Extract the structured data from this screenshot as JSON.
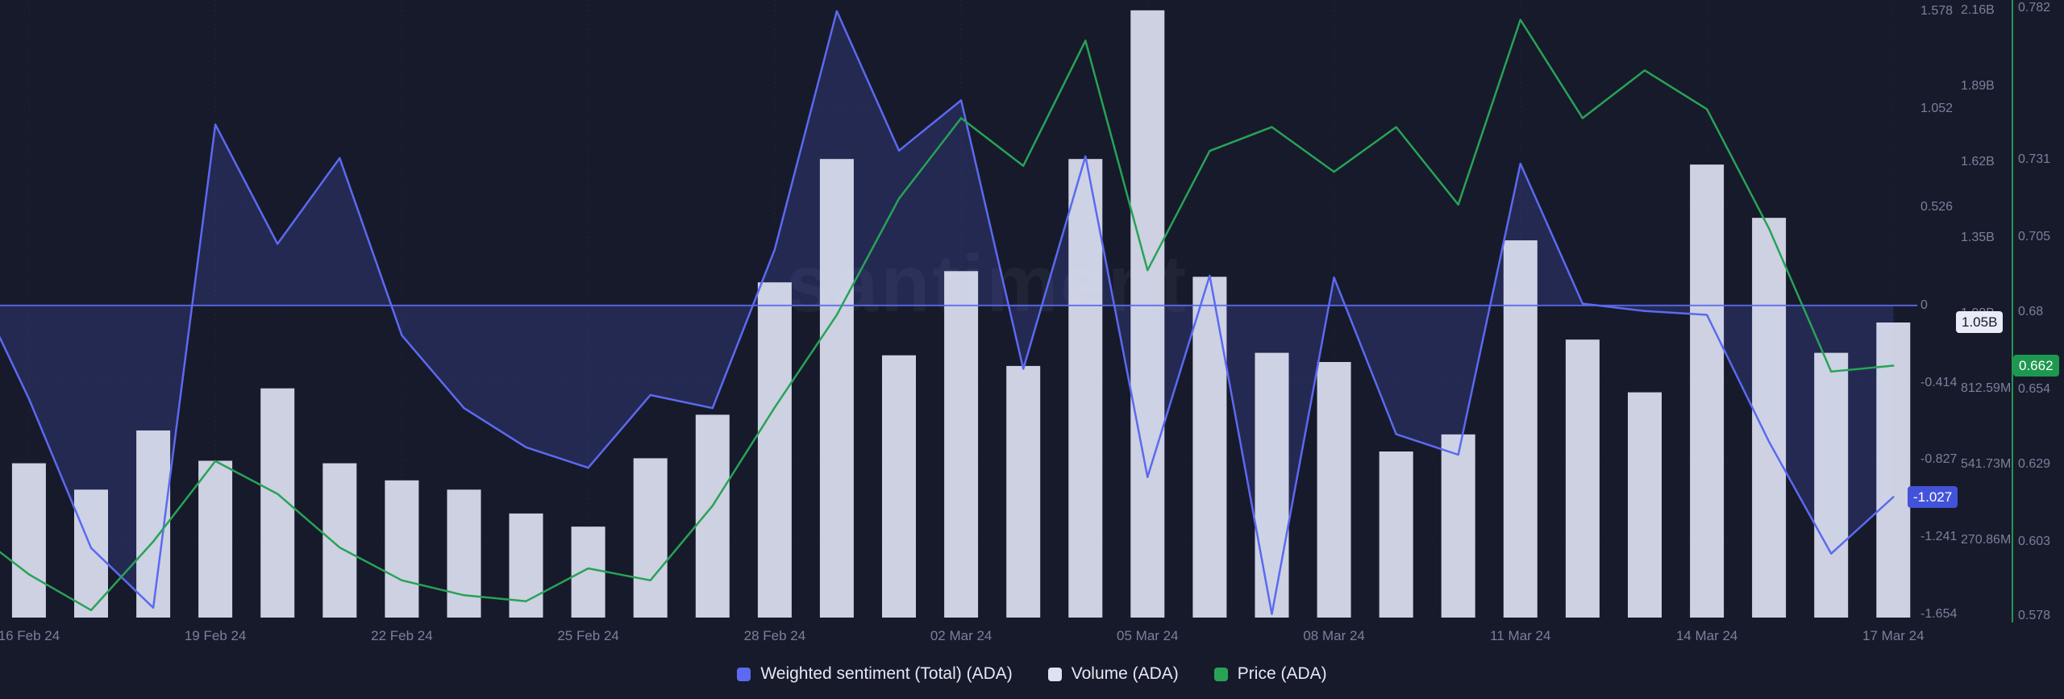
{
  "watermark": "santiment.",
  "colors": {
    "background": "#171a2b",
    "sentiment_line": "#5b6af0",
    "sentiment_fill": "rgba(91,106,240,0.20)",
    "volume_bar": "#dde1f2",
    "price_green": "#27a356",
    "badge_sentiment_bg": "#4353d9",
    "badge_volume_bg": "#e9ebf6",
    "badge_price_bg": "#1e9850",
    "axis_text": "#7b809b",
    "legend_text": "#e6e8f2"
  },
  "axes": {
    "sentiment": {
      "ticks": [
        {
          "label": "1.578",
          "value": 1.578
        },
        {
          "label": "1.052",
          "value": 1.052
        },
        {
          "label": "0.526",
          "value": 0.526
        },
        {
          "label": "0",
          "value": 0
        },
        {
          "label": "-0.414",
          "value": -0.414
        },
        {
          "label": "-0.827",
          "value": -0.827
        },
        {
          "label": "-1.241",
          "value": -1.241
        },
        {
          "label": "-1.654",
          "value": -1.654
        }
      ],
      "badge": {
        "label": "-1.027",
        "value": -1.027
      }
    },
    "volume": {
      "ticks": [
        {
          "label": "2.16B",
          "value_millions": 2160
        },
        {
          "label": "1.89B",
          "value_millions": 1890
        },
        {
          "label": "1.62B",
          "value_millions": 1620
        },
        {
          "label": "1.35B",
          "value_millions": 1350
        },
        {
          "label": "1.08B",
          "value_millions": 1080
        },
        {
          "label": "812.59M",
          "value_millions": 812.59
        },
        {
          "label": "541.73M",
          "value_millions": 541.73
        },
        {
          "label": "270.86M",
          "value_millions": 270.86
        }
      ],
      "badge": {
        "label": "1.05B",
        "value_millions": 1047
      }
    },
    "price": {
      "ticks": [
        {
          "label": "0.782",
          "value": 0.782
        },
        {
          "label": "0.731",
          "value": 0.731
        },
        {
          "label": "0.705",
          "value": 0.705
        },
        {
          "label": "0.68",
          "value": 0.68
        },
        {
          "label": "0.654",
          "value": 0.654
        },
        {
          "label": "0.629",
          "value": 0.629
        },
        {
          "label": "0.603",
          "value": 0.603
        },
        {
          "label": "0.578",
          "value": 0.578
        }
      ],
      "badge": {
        "label": "0.662",
        "value": 0.662
      }
    }
  },
  "legend": [
    {
      "key": "weighted-sentiment",
      "label": "Weighted sentiment (Total) (ADA)",
      "color": "#5b6af0"
    },
    {
      "key": "volume",
      "label": "Volume (ADA)",
      "color": "#dde1f2"
    },
    {
      "key": "price",
      "label": "Price (ADA)",
      "color": "#27a356"
    }
  ],
  "chart_data": {
    "type": "mixed",
    "title": "",
    "x_tick_labels": [
      "16 Feb 24",
      "19 Feb 24",
      "22 Feb 24",
      "25 Feb 24",
      "28 Feb 24",
      "02 Mar 24",
      "05 Mar 24",
      "08 Mar 24",
      "11 Mar 24",
      "14 Mar 24",
      "17 Mar 24"
    ],
    "x": [
      "15 Feb 24",
      "16 Feb 24",
      "17 Feb 24",
      "18 Feb 24",
      "19 Feb 24",
      "20 Feb 24",
      "21 Feb 24",
      "22 Feb 24",
      "23 Feb 24",
      "24 Feb 24",
      "25 Feb 24",
      "26 Feb 24",
      "27 Feb 24",
      "28 Feb 24",
      "29 Feb 24",
      "01 Mar 24",
      "02 Mar 24",
      "03 Mar 24",
      "04 Mar 24",
      "05 Mar 24",
      "06 Mar 24",
      "07 Mar 24",
      "08 Mar 24",
      "09 Mar 24",
      "10 Mar 24",
      "11 Mar 24",
      "12 Mar 24",
      "13 Mar 24",
      "14 Mar 24",
      "15 Mar 24",
      "16 Mar 24",
      "17 Mar 24"
    ],
    "series": [
      {
        "name": "Weighted sentiment (Total) (ADA)",
        "type": "area-line",
        "y_axis": "sentiment",
        "values": [
          0.2,
          -0.5,
          -1.3,
          -1.62,
          0.97,
          0.33,
          0.79,
          -0.16,
          -0.55,
          -0.76,
          -0.87,
          -0.48,
          -0.55,
          0.3,
          1.578,
          0.83,
          1.1,
          -0.34,
          0.8,
          -0.92,
          0.16,
          -1.654,
          0.15,
          -0.69,
          -0.8,
          0.76,
          0.01,
          -0.03,
          -0.05,
          -0.73,
          -1.33,
          -1.027
        ]
      },
      {
        "name": "Volume (ADA)",
        "type": "bar",
        "y_axis": "volume",
        "values_millions": [
          null,
          545,
          451,
          662,
          554,
          812,
          545,
          484,
          451,
          366,
          319,
          563,
          718,
          1190,
          1630,
          930,
          1230,
          892,
          1630,
          2160,
          1210,
          939,
          906,
          587,
          648,
          1340,
          986,
          798,
          1610,
          1420,
          939,
          1047
        ]
      },
      {
        "name": "Price (ADA)",
        "type": "line",
        "y_axis": "price",
        "values": [
          0.608,
          0.592,
          0.58,
          0.603,
          0.63,
          0.619,
          0.601,
          0.59,
          0.585,
          0.583,
          0.594,
          0.59,
          0.615,
          0.648,
          0.679,
          0.718,
          0.745,
          0.729,
          0.771,
          0.694,
          0.734,
          0.742,
          0.727,
          0.742,
          0.716,
          0.778,
          0.745,
          0.761,
          0.748,
          0.708,
          0.66,
          0.662
        ]
      }
    ],
    "y_axes": {
      "sentiment": {
        "range": [
          -1.654,
          1.578
        ],
        "zero_line": 0,
        "position": "right"
      },
      "volume_millions": {
        "range": [
          0,
          2197
        ],
        "position": "right"
      },
      "price": {
        "range": [
          0.578,
          0.782
        ],
        "position": "right"
      }
    },
    "legend_position": "bottom",
    "grid": "dotted"
  }
}
